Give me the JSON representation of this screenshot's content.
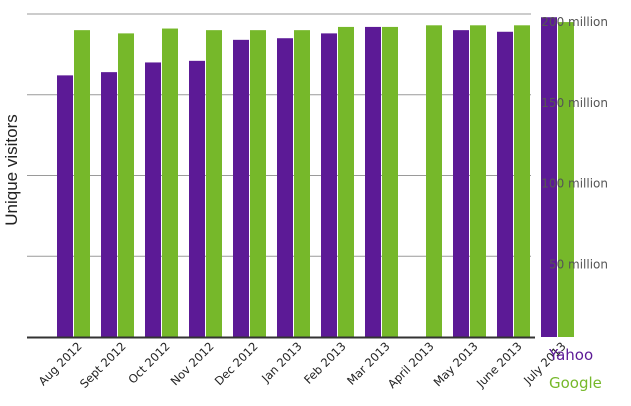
{
  "chart_data": {
    "type": "bar",
    "title": "",
    "xlabel": "",
    "ylabel": "Unique visitors",
    "ylim": [
      0,
      200000000
    ],
    "yticks": [
      {
        "value": 50000000,
        "label": "50 million"
      },
      {
        "value": 100000000,
        "label": "100 million"
      },
      {
        "value": 150000000,
        "label": "150 million"
      },
      {
        "value": 200000000,
        "label": "200 million"
      }
    ],
    "grid": true,
    "legend_position": "bottom-right",
    "categories": [
      "Aug 2012",
      "Sept 2012",
      "Oct 2012",
      "Nov 2012",
      "Dec 2012",
      "Jan 2013",
      "Feb 2013",
      "Mar 2013",
      "April 2013",
      "May 2013",
      "June 2013",
      "July 2013"
    ],
    "series": [
      {
        "name": "Yahoo",
        "color": "#5c1a96",
        "values": [
          162000000,
          164000000,
          170000000,
          171000000,
          184000000,
          185000000,
          188000000,
          192000000,
          null,
          190000000,
          189000000,
          198000000
        ]
      },
      {
        "name": "Google",
        "color": "#76b82a",
        "values": [
          190000000,
          188000000,
          191000000,
          190000000,
          190000000,
          190000000,
          192000000,
          192000000,
          193000000,
          193000000,
          193000000,
          195000000
        ]
      }
    ]
  }
}
